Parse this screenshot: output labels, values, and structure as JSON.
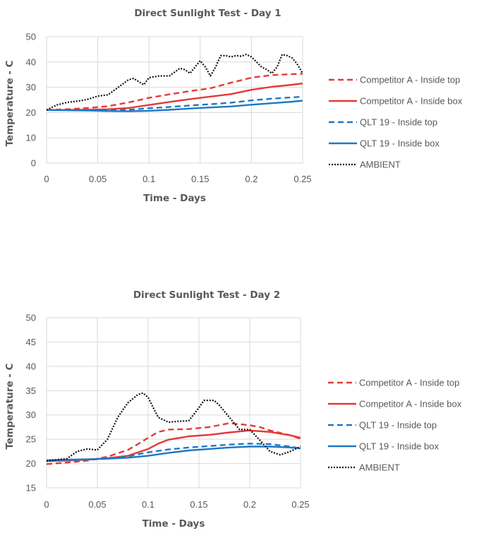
{
  "chart_data": [
    {
      "type": "line",
      "title": "Direct Sunlight Test -  Day 1",
      "xlabel": "Time - Days",
      "ylabel": "Temperature - C",
      "xlim": [
        0,
        0.25
      ],
      "ylim": [
        0,
        50
      ],
      "xticks": [
        "0",
        "0.05",
        "0.1",
        "0.15",
        "0.2",
        "0.25"
      ],
      "xtick_values": [
        0,
        0.05,
        0.1,
        0.15,
        0.2,
        0.25
      ],
      "yticks": [
        "0",
        "10",
        "20",
        "30",
        "40",
        "50"
      ],
      "ytick_values": [
        0,
        10,
        20,
        30,
        40,
        50
      ],
      "grid": true,
      "legend_position": "right",
      "series": [
        {
          "name": "Competitor A - Inside top",
          "color": "#e53935",
          "dash": "dashed",
          "x": [
            0,
            0.02,
            0.04,
            0.06,
            0.08,
            0.1,
            0.12,
            0.14,
            0.16,
            0.18,
            0.2,
            0.22,
            0.24,
            0.25
          ],
          "y": [
            21,
            21.3,
            21.8,
            22.5,
            24,
            25.8,
            27.2,
            28.5,
            29.6,
            31.8,
            33.8,
            34.8,
            35.2,
            35.3
          ]
        },
        {
          "name": "Competitor A  - Inside box",
          "color": "#e53935",
          "dash": "solid",
          "x": [
            0,
            0.02,
            0.04,
            0.06,
            0.08,
            0.1,
            0.12,
            0.14,
            0.16,
            0.18,
            0.2,
            0.22,
            0.24,
            0.25
          ],
          "y": [
            21,
            21,
            21.1,
            21.3,
            21.8,
            23,
            24.2,
            25.3,
            26.3,
            27.3,
            29,
            30.2,
            31,
            31.5
          ]
        },
        {
          "name": "QLT 19 - Inside top",
          "color": "#1f77c4",
          "dash": "dashed",
          "x": [
            0,
            0.02,
            0.04,
            0.06,
            0.08,
            0.1,
            0.12,
            0.14,
            0.16,
            0.18,
            0.2,
            0.22,
            0.24,
            0.25
          ],
          "y": [
            21,
            21,
            20.9,
            20.9,
            21.1,
            21.7,
            22.2,
            22.8,
            23.3,
            23.9,
            24.8,
            25.5,
            26,
            26.3
          ]
        },
        {
          "name": "QLT 19 - Inside box",
          "color": "#1f77c4",
          "dash": "solid",
          "x": [
            0,
            0.02,
            0.04,
            0.06,
            0.08,
            0.1,
            0.12,
            0.14,
            0.16,
            0.18,
            0.2,
            0.22,
            0.24,
            0.25
          ],
          "y": [
            21,
            20.9,
            20.8,
            20.6,
            20.5,
            20.7,
            21.1,
            21.6,
            22,
            22.4,
            23.1,
            23.7,
            24.3,
            24.7
          ]
        },
        {
          "name": "AMBIENT",
          "color": "#111111",
          "dash": "dotted",
          "x": [
            0,
            0.01,
            0.02,
            0.03,
            0.04,
            0.05,
            0.06,
            0.07,
            0.08,
            0.085,
            0.09,
            0.095,
            0.1,
            0.11,
            0.12,
            0.13,
            0.135,
            0.14,
            0.145,
            0.15,
            0.155,
            0.16,
            0.165,
            0.17,
            0.175,
            0.18,
            0.185,
            0.19,
            0.195,
            0.2,
            0.205,
            0.21,
            0.215,
            0.22,
            0.225,
            0.23,
            0.235,
            0.24,
            0.245,
            0.25
          ],
          "y": [
            21,
            23,
            24,
            24.5,
            25.2,
            26.5,
            27,
            30,
            33,
            33.5,
            32.2,
            31,
            33.8,
            34.5,
            34.5,
            37.5,
            37,
            35.5,
            38,
            40.5,
            38,
            34.5,
            38,
            42.5,
            42.5,
            42,
            42.5,
            42.3,
            43,
            42,
            40,
            38,
            37,
            35.5,
            38,
            43,
            42.5,
            41.5,
            39,
            35.5
          ]
        }
      ]
    },
    {
      "type": "line",
      "title": "Direct Sunlight Test - Day 2",
      "xlabel": "Time - Days",
      "ylabel": "Temperature - C",
      "xlim": [
        0,
        0.25
      ],
      "ylim": [
        15,
        50
      ],
      "xticks": [
        "0",
        "0.05",
        "0.1",
        "0.15",
        "0.2",
        "0.25"
      ],
      "xtick_values": [
        0,
        0.05,
        0.1,
        0.15,
        0.2,
        0.25
      ],
      "yticks": [
        "15",
        "20",
        "25",
        "30",
        "35",
        "40",
        "45",
        "50"
      ],
      "ytick_values": [
        15,
        20,
        25,
        30,
        35,
        40,
        45,
        50
      ],
      "grid": true,
      "legend_position": "right",
      "series": [
        {
          "name": "Competitor A  - Inside top",
          "color": "#e53935",
          "dash": "dashed",
          "x": [
            0,
            0.02,
            0.04,
            0.06,
            0.08,
            0.09,
            0.1,
            0.11,
            0.12,
            0.14,
            0.16,
            0.18,
            0.19,
            0.2,
            0.21,
            0.22,
            0.24,
            0.25
          ],
          "y": [
            19.9,
            20.2,
            20.6,
            21.4,
            22.8,
            24,
            25.3,
            26.5,
            27,
            27.1,
            27.5,
            28.3,
            28.1,
            27.9,
            27.5,
            26.8,
            25.8,
            25.1
          ]
        },
        {
          "name": "Competitor A  - Inside box",
          "color": "#e53935",
          "dash": "solid",
          "x": [
            0,
            0.02,
            0.04,
            0.06,
            0.08,
            0.1,
            0.11,
            0.12,
            0.14,
            0.16,
            0.18,
            0.2,
            0.22,
            0.24,
            0.25
          ],
          "y": [
            20.5,
            20.6,
            20.8,
            21.1,
            21.6,
            23,
            24.1,
            24.9,
            25.6,
            25.9,
            26.4,
            26.8,
            26.5,
            25.8,
            25.3
          ]
        },
        {
          "name": "QLT 19 - Inside top",
          "color": "#1f77c4",
          "dash": "dashed",
          "x": [
            0,
            0.02,
            0.04,
            0.06,
            0.08,
            0.1,
            0.12,
            0.14,
            0.16,
            0.18,
            0.2,
            0.22,
            0.24,
            0.25
          ],
          "y": [
            20.6,
            20.7,
            20.8,
            21,
            21.5,
            22.3,
            22.9,
            23.3,
            23.6,
            23.9,
            24.1,
            24,
            23.5,
            23.1
          ]
        },
        {
          "name": "QLT 19 - Inside box",
          "color": "#1f77c4",
          "dash": "solid",
          "x": [
            0,
            0.02,
            0.04,
            0.06,
            0.08,
            0.1,
            0.12,
            0.14,
            0.16,
            0.18,
            0.2,
            0.22,
            0.24,
            0.25
          ],
          "y": [
            20.7,
            20.8,
            20.9,
            21,
            21.2,
            21.6,
            22.2,
            22.7,
            23,
            23.3,
            23.5,
            23.5,
            23.3,
            23.1
          ]
        },
        {
          "name": "AMBIENT",
          "color": "#111111",
          "dash": "dotted",
          "x": [
            0,
            0.01,
            0.02,
            0.03,
            0.04,
            0.05,
            0.06,
            0.07,
            0.08,
            0.09,
            0.095,
            0.1,
            0.105,
            0.11,
            0.12,
            0.13,
            0.14,
            0.15,
            0.155,
            0.16,
            0.165,
            0.17,
            0.18,
            0.19,
            0.2,
            0.21,
            0.22,
            0.23,
            0.24,
            0.25
          ],
          "y": [
            20.5,
            20.8,
            21,
            22.5,
            23,
            22.8,
            25,
            29.5,
            32.5,
            34.2,
            34.5,
            33.6,
            31.5,
            29.5,
            28.5,
            28.7,
            28.8,
            31.5,
            33,
            33,
            33,
            32,
            29.5,
            27,
            27,
            24.8,
            22.5,
            21.8,
            22.5,
            23.5
          ]
        }
      ]
    }
  ]
}
